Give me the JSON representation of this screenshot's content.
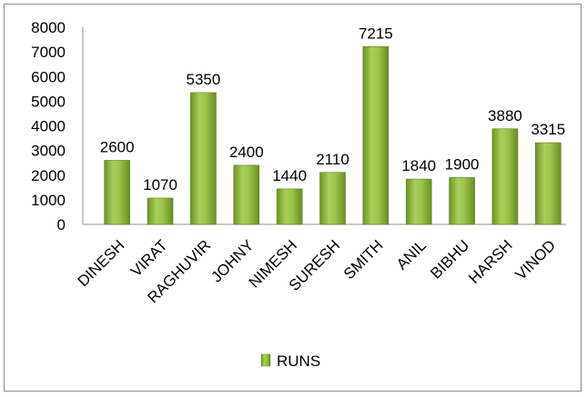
{
  "chart_data": {
    "type": "bar",
    "categories": [
      "DINESH",
      "VIRAT",
      "RAGHUVIR",
      "JOHNY",
      "NIMESH",
      "SURESH",
      "SMITH",
      "ANIL",
      "BIBHU",
      "HARSH",
      "VINOD"
    ],
    "series": [
      {
        "name": "RUNS",
        "values": [
          2600,
          1070,
          5350,
          2400,
          1440,
          2110,
          7215,
          1840,
          1900,
          3880,
          3315
        ]
      }
    ],
    "ylim": [
      0,
      8000
    ],
    "yticks": [
      "0",
      "1000",
      "2000",
      "3000",
      "4000",
      "5000",
      "6000",
      "7000",
      "8000"
    ],
    "grid": false,
    "legend": "bottom",
    "bar_color": "#8db33c"
  }
}
